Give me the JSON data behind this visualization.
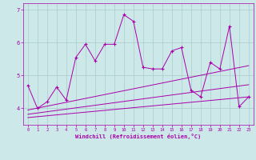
{
  "xlabel": "Windchill (Refroidissement éolien,°C)",
  "background_color": "#cce8e8",
  "grid_color": "#aacccc",
  "line_color": "#aa00aa",
  "xlim": [
    -0.5,
    23.5
  ],
  "ylim": [
    3.5,
    7.2
  ],
  "xticks": [
    0,
    1,
    2,
    3,
    4,
    5,
    6,
    7,
    8,
    9,
    10,
    11,
    12,
    13,
    14,
    15,
    16,
    17,
    18,
    19,
    20,
    21,
    22,
    23
  ],
  "yticks": [
    4,
    5,
    6,
    7
  ],
  "main_x": [
    0,
    1,
    2,
    3,
    4,
    5,
    6,
    7,
    8,
    9,
    10,
    11,
    12,
    13,
    14,
    15,
    16,
    17,
    18,
    19,
    20,
    21,
    22,
    23
  ],
  "main_y": [
    4.7,
    4.0,
    4.2,
    4.65,
    4.25,
    5.55,
    5.95,
    5.45,
    5.95,
    5.95,
    6.85,
    6.65,
    5.25,
    5.2,
    5.2,
    5.75,
    5.85,
    4.55,
    4.35,
    5.4,
    5.2,
    6.5,
    4.05,
    4.35
  ],
  "trend1_x": [
    0,
    23
  ],
  "trend1_y": [
    3.72,
    4.35
  ],
  "trend2_x": [
    0,
    23
  ],
  "trend2_y": [
    3.82,
    4.72
  ],
  "trend3_x": [
    0,
    23
  ],
  "trend3_y": [
    3.95,
    5.3
  ]
}
